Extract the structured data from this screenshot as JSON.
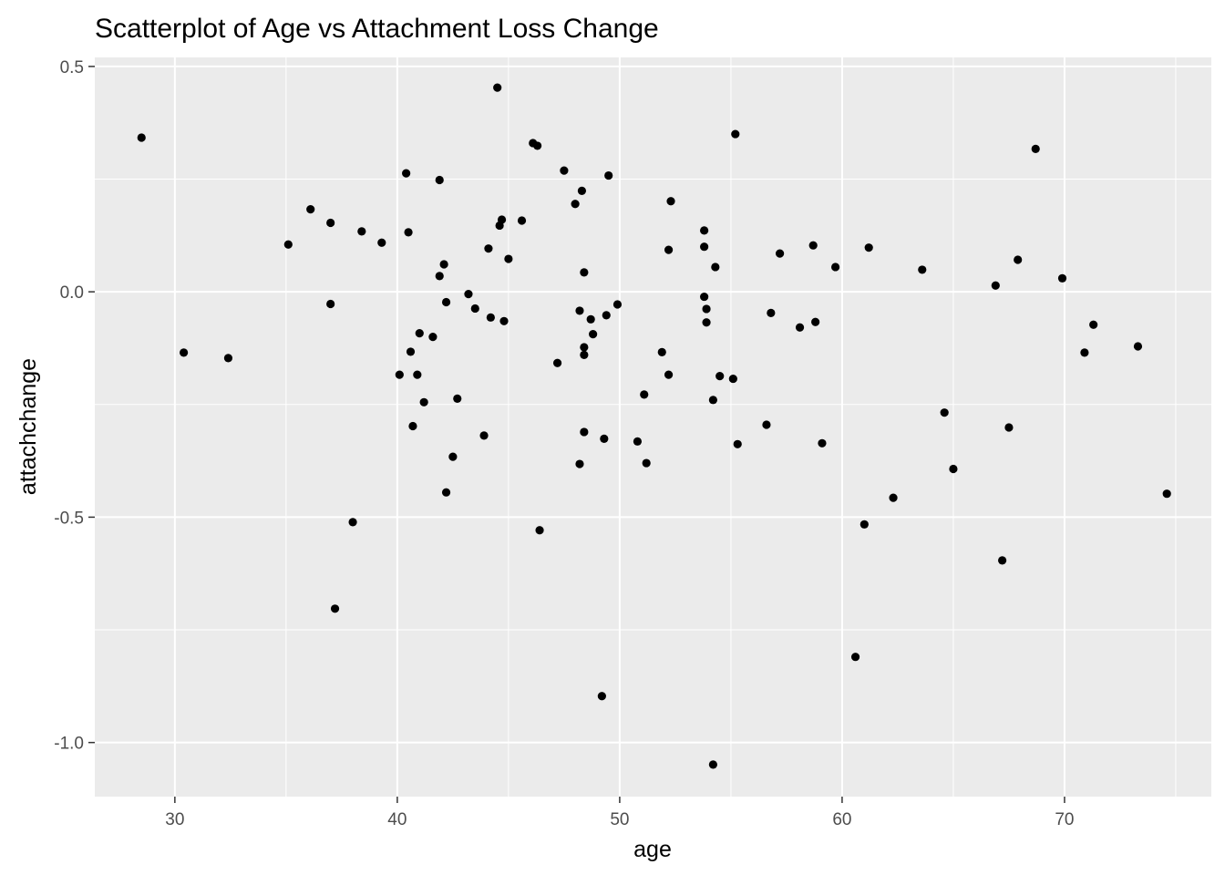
{
  "chart_data": {
    "type": "scatter",
    "title": "Scatterplot of Age vs Attachment Loss Change",
    "xlabel": "age",
    "ylabel": "attachchange",
    "xlim": [
      26.4,
      76.6
    ],
    "ylim": [
      -1.12,
      0.52
    ],
    "x_ticks": [
      30,
      40,
      50,
      60,
      70
    ],
    "y_ticks": [
      0.5,
      0.0,
      -0.5,
      -1.0
    ],
    "x_tick_labels": [
      "30",
      "40",
      "50",
      "60",
      "70"
    ],
    "y_tick_labels": [
      "0.5",
      "0.0",
      "-0.5",
      "-1.0"
    ],
    "grid": true,
    "background": "#ebebeb",
    "grid_color": "#ffffff",
    "point_color": "#000000",
    "points": [
      {
        "x": 28.5,
        "y": 0.342
      },
      {
        "x": 30.4,
        "y": -0.135
      },
      {
        "x": 32.4,
        "y": -0.147
      },
      {
        "x": 35.1,
        "y": 0.105
      },
      {
        "x": 36.1,
        "y": 0.183
      },
      {
        "x": 37.0,
        "y": 0.153
      },
      {
        "x": 37.0,
        "y": -0.027
      },
      {
        "x": 37.2,
        "y": -0.703
      },
      {
        "x": 38.0,
        "y": -0.511
      },
      {
        "x": 38.4,
        "y": 0.134
      },
      {
        "x": 39.3,
        "y": 0.109
      },
      {
        "x": 40.1,
        "y": -0.184
      },
      {
        "x": 40.4,
        "y": 0.263
      },
      {
        "x": 40.5,
        "y": 0.132
      },
      {
        "x": 40.6,
        "y": -0.133
      },
      {
        "x": 40.7,
        "y": -0.298
      },
      {
        "x": 40.9,
        "y": -0.184
      },
      {
        "x": 41.0,
        "y": -0.092
      },
      {
        "x": 41.2,
        "y": -0.245
      },
      {
        "x": 41.6,
        "y": -0.1
      },
      {
        "x": 41.9,
        "y": 0.248
      },
      {
        "x": 41.9,
        "y": 0.035
      },
      {
        "x": 42.1,
        "y": 0.061
      },
      {
        "x": 42.2,
        "y": -0.023
      },
      {
        "x": 42.2,
        "y": -0.445
      },
      {
        "x": 42.5,
        "y": -0.366
      },
      {
        "x": 42.7,
        "y": -0.237
      },
      {
        "x": 43.2,
        "y": -0.005
      },
      {
        "x": 43.5,
        "y": -0.037
      },
      {
        "x": 43.9,
        "y": -0.319
      },
      {
        "x": 44.1,
        "y": 0.096
      },
      {
        "x": 44.2,
        "y": -0.057
      },
      {
        "x": 44.5,
        "y": 0.453
      },
      {
        "x": 44.6,
        "y": 0.147
      },
      {
        "x": 44.7,
        "y": 0.16
      },
      {
        "x": 44.8,
        "y": -0.065
      },
      {
        "x": 45.0,
        "y": 0.073
      },
      {
        "x": 45.6,
        "y": 0.158
      },
      {
        "x": 46.1,
        "y": 0.33
      },
      {
        "x": 46.3,
        "y": 0.324
      },
      {
        "x": 46.4,
        "y": -0.529
      },
      {
        "x": 47.2,
        "y": -0.158
      },
      {
        "x": 47.5,
        "y": 0.269
      },
      {
        "x": 48.0,
        "y": 0.195
      },
      {
        "x": 48.2,
        "y": -0.042
      },
      {
        "x": 48.2,
        "y": -0.382
      },
      {
        "x": 48.3,
        "y": 0.224
      },
      {
        "x": 48.4,
        "y": 0.043
      },
      {
        "x": 48.4,
        "y": -0.123
      },
      {
        "x": 48.4,
        "y": -0.14
      },
      {
        "x": 48.4,
        "y": -0.311
      },
      {
        "x": 48.7,
        "y": -0.061
      },
      {
        "x": 48.8,
        "y": -0.094
      },
      {
        "x": 49.2,
        "y": -0.897
      },
      {
        "x": 49.3,
        "y": -0.326
      },
      {
        "x": 49.4,
        "y": -0.052
      },
      {
        "x": 49.5,
        "y": 0.258
      },
      {
        "x": 49.9,
        "y": -0.028
      },
      {
        "x": 50.8,
        "y": -0.332
      },
      {
        "x": 51.1,
        "y": -0.228
      },
      {
        "x": 51.2,
        "y": -0.38
      },
      {
        "x": 51.9,
        "y": -0.134
      },
      {
        "x": 52.2,
        "y": 0.093
      },
      {
        "x": 52.2,
        "y": -0.184
      },
      {
        "x": 52.3,
        "y": 0.201
      },
      {
        "x": 53.8,
        "y": 0.136
      },
      {
        "x": 53.8,
        "y": 0.1
      },
      {
        "x": 53.8,
        "y": -0.011
      },
      {
        "x": 53.9,
        "y": -0.038
      },
      {
        "x": 53.9,
        "y": -0.068
      },
      {
        "x": 54.2,
        "y": -0.24
      },
      {
        "x": 54.2,
        "y": -1.049
      },
      {
        "x": 54.3,
        "y": 0.055
      },
      {
        "x": 54.5,
        "y": -0.187
      },
      {
        "x": 55.1,
        "y": -0.193
      },
      {
        "x": 55.2,
        "y": 0.35
      },
      {
        "x": 55.3,
        "y": -0.338
      },
      {
        "x": 56.6,
        "y": -0.295
      },
      {
        "x": 56.8,
        "y": -0.047
      },
      {
        "x": 57.2,
        "y": 0.085
      },
      {
        "x": 58.1,
        "y": -0.079
      },
      {
        "x": 58.7,
        "y": 0.103
      },
      {
        "x": 58.8,
        "y": -0.067
      },
      {
        "x": 59.1,
        "y": -0.336
      },
      {
        "x": 59.7,
        "y": 0.055
      },
      {
        "x": 60.6,
        "y": -0.81
      },
      {
        "x": 61.0,
        "y": -0.516
      },
      {
        "x": 61.2,
        "y": 0.098
      },
      {
        "x": 62.3,
        "y": -0.457
      },
      {
        "x": 63.6,
        "y": 0.049
      },
      {
        "x": 64.6,
        "y": -0.268
      },
      {
        "x": 65.0,
        "y": -0.393
      },
      {
        "x": 66.9,
        "y": 0.014
      },
      {
        "x": 67.2,
        "y": -0.596
      },
      {
        "x": 67.5,
        "y": -0.301
      },
      {
        "x": 67.9,
        "y": 0.071
      },
      {
        "x": 68.7,
        "y": 0.317
      },
      {
        "x": 69.9,
        "y": 0.03
      },
      {
        "x": 70.9,
        "y": -0.135
      },
      {
        "x": 71.3,
        "y": -0.073
      },
      {
        "x": 73.3,
        "y": -0.121
      },
      {
        "x": 74.6,
        "y": -0.448
      }
    ]
  }
}
